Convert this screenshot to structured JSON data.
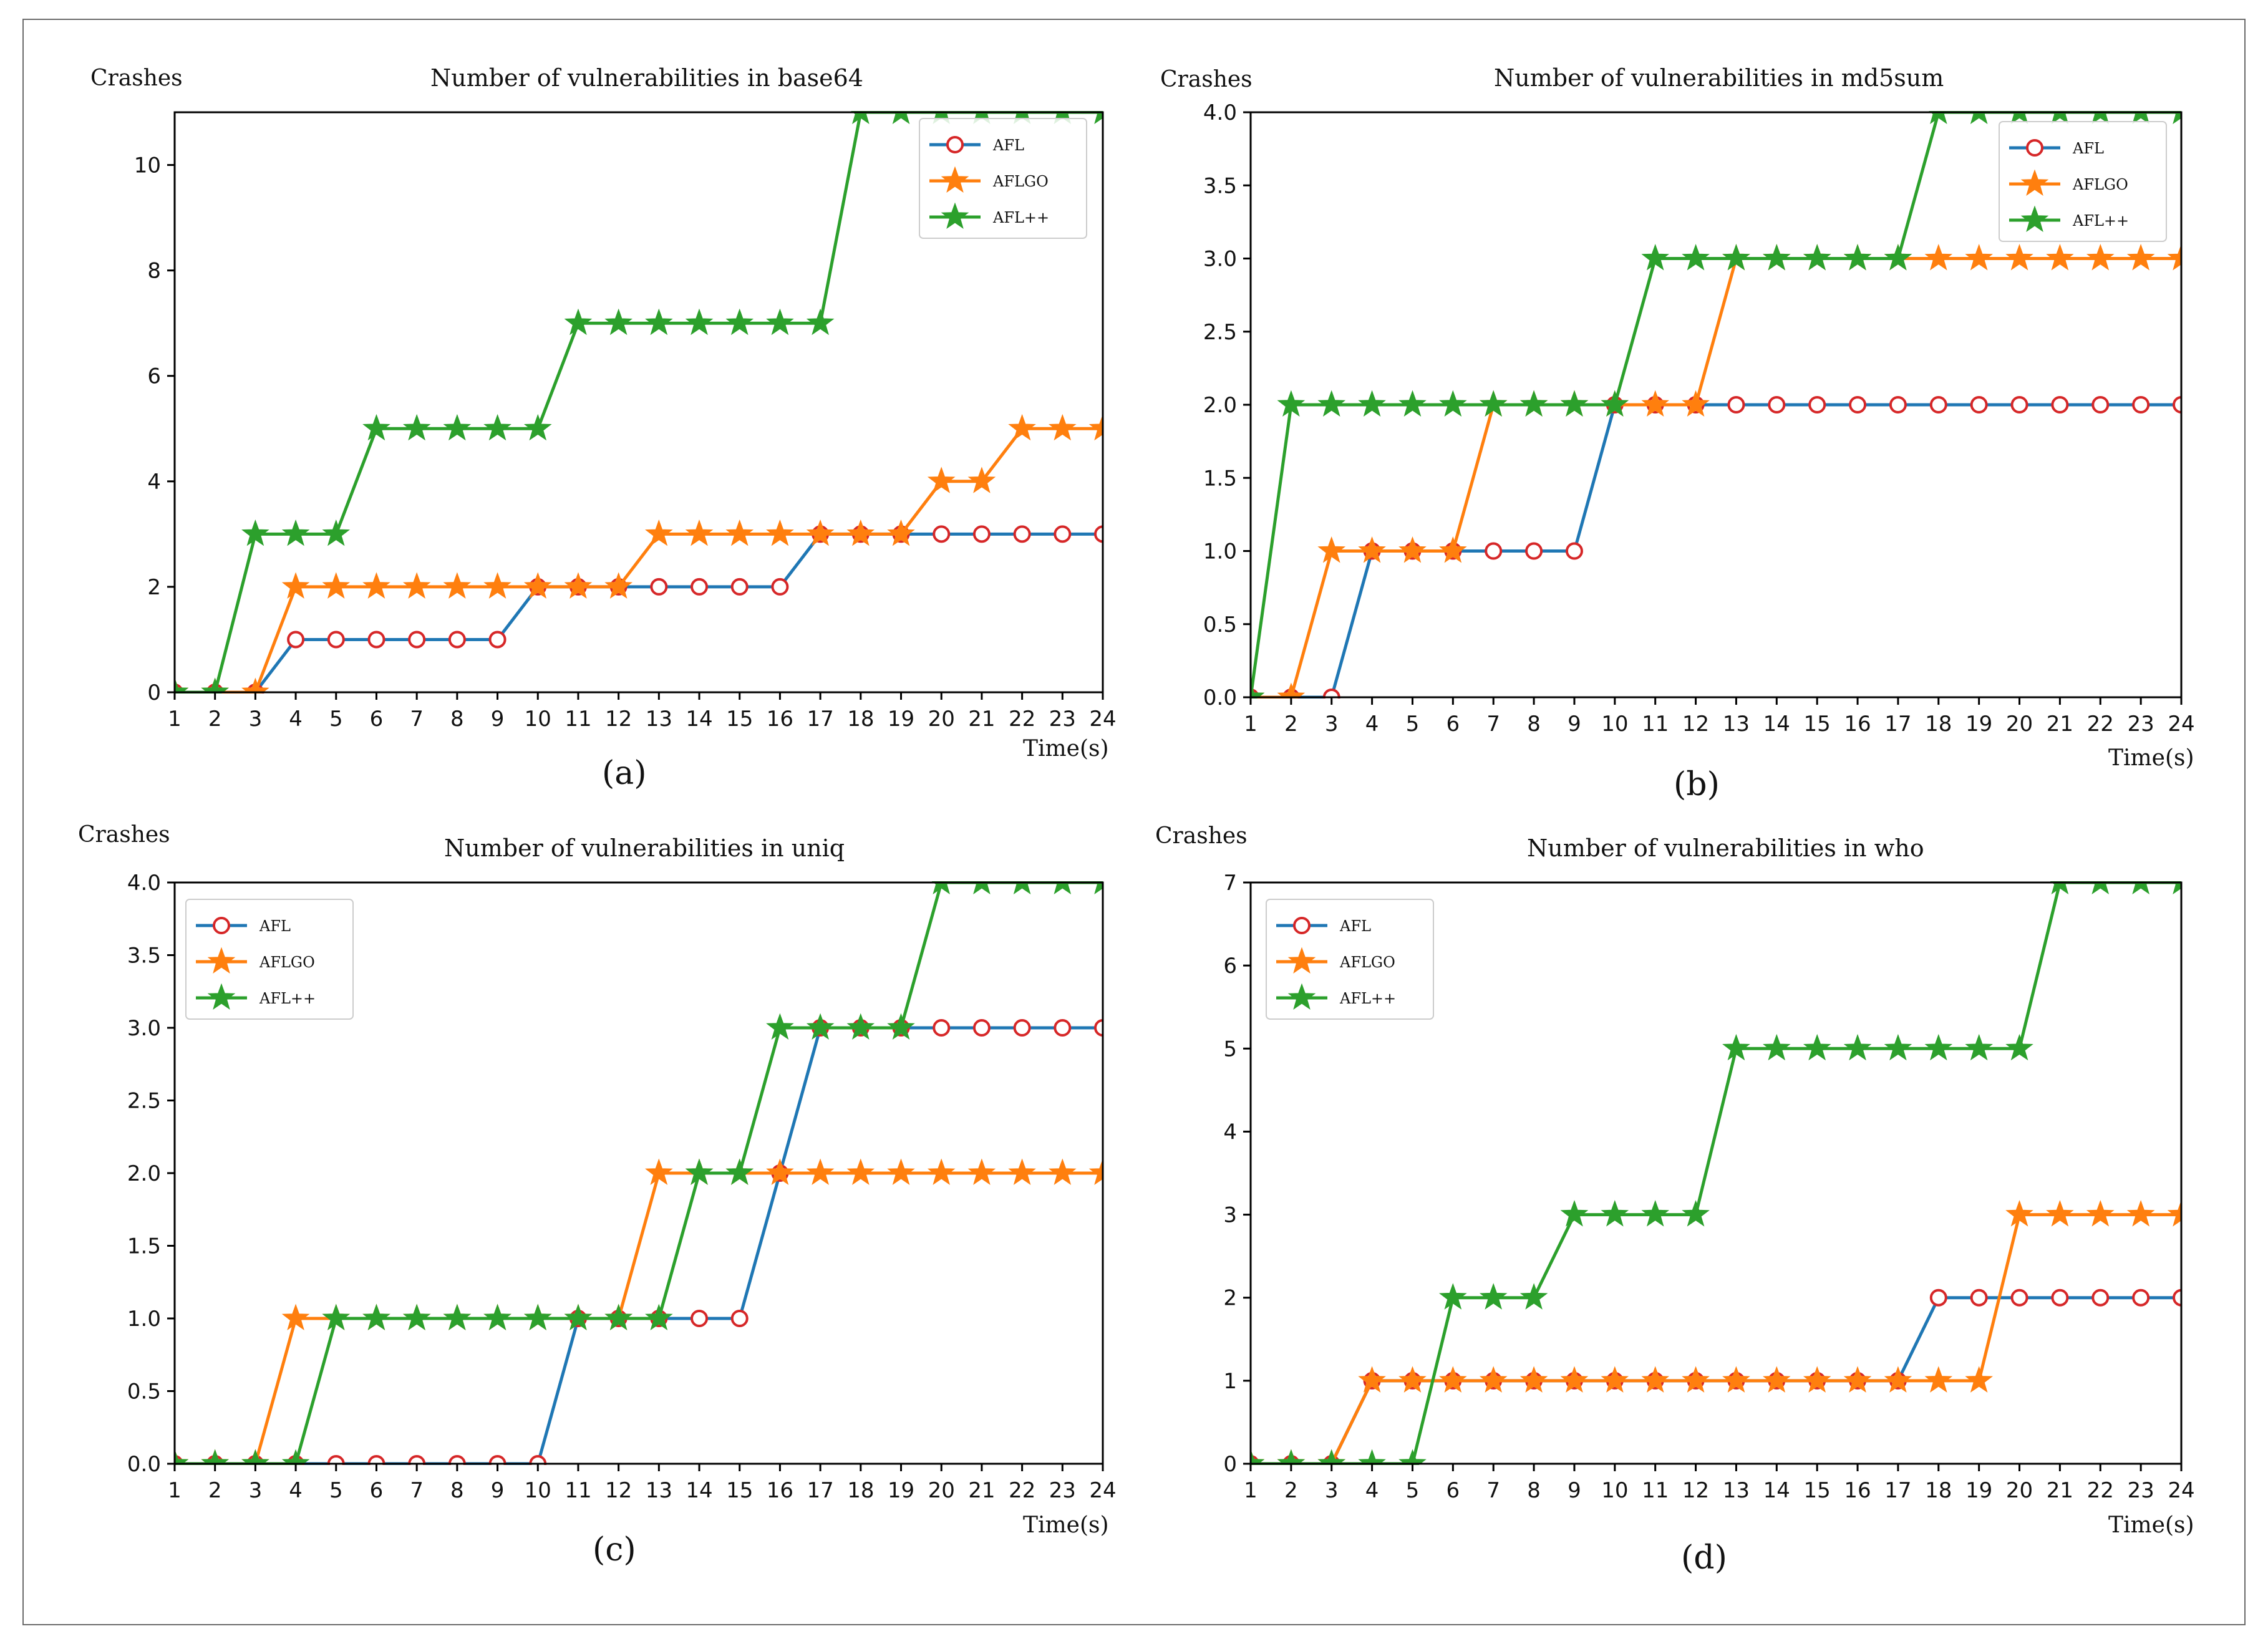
{
  "figure": {
    "colors": {
      "afl": "#1f77b4",
      "aflgo": "#ff7f0e",
      "aflpp": "#2ca02c",
      "marker_edge_afl": "#d62728",
      "axis": "#000000"
    }
  },
  "chart_data": [
    {
      "type": "line",
      "panel": "a",
      "caption": "(a)",
      "title": "Number of vulnerabilities in base64",
      "ylabel": "Crashes",
      "xlabel": "Time(s)",
      "x": [
        1,
        2,
        3,
        4,
        5,
        6,
        7,
        8,
        9,
        10,
        11,
        12,
        13,
        14,
        15,
        16,
        17,
        18,
        19,
        20,
        21,
        22,
        23,
        24
      ],
      "xlim": [
        1,
        24
      ],
      "ylim": [
        0,
        11
      ],
      "yticks": [
        0,
        2,
        4,
        6,
        8,
        10
      ],
      "ytick_labels": [
        "0",
        "2",
        "4",
        "6",
        "8",
        "10"
      ],
      "legend": {
        "position": "top-right",
        "entries": [
          "AFL",
          "AFLGO",
          "AFL++"
        ]
      },
      "series": [
        {
          "name": "AFL",
          "values": [
            0,
            0,
            0,
            1,
            1,
            1,
            1,
            1,
            1,
            2,
            2,
            2,
            2,
            2,
            2,
            2,
            3,
            3,
            3,
            3,
            3,
            3,
            3,
            3
          ]
        },
        {
          "name": "AFLGO",
          "values": [
            0,
            0,
            0,
            2,
            2,
            2,
            2,
            2,
            2,
            2,
            2,
            2,
            3,
            3,
            3,
            3,
            3,
            3,
            3,
            4,
            4,
            5,
            5,
            5
          ]
        },
        {
          "name": "AFL++",
          "values": [
            0,
            0,
            3,
            3,
            3,
            5,
            5,
            5,
            5,
            5,
            7,
            7,
            7,
            7,
            7,
            7,
            7,
            11,
            11,
            11,
            11,
            11,
            11,
            11
          ]
        }
      ]
    },
    {
      "type": "line",
      "panel": "b",
      "caption": "(b)",
      "title": "Number of vulnerabilities in md5sum",
      "ylabel": "Crashes",
      "xlabel": "Time(s)",
      "x": [
        1,
        2,
        3,
        4,
        5,
        6,
        7,
        8,
        9,
        10,
        11,
        12,
        13,
        14,
        15,
        16,
        17,
        18,
        19,
        20,
        21,
        22,
        23,
        24
      ],
      "xlim": [
        1,
        24
      ],
      "ylim": [
        0,
        4
      ],
      "yticks": [
        0,
        0.5,
        1,
        1.5,
        2,
        2.5,
        3,
        3.5,
        4
      ],
      "ytick_labels": [
        "0.0",
        "0.5",
        "1.0",
        "1.5",
        "2.0",
        "2.5",
        "3.0",
        "3.5",
        "4.0"
      ],
      "legend": {
        "position": "top-right",
        "entries": [
          "AFL",
          "AFLGO",
          "AFL++"
        ]
      },
      "series": [
        {
          "name": "AFL",
          "values": [
            0,
            0,
            0,
            1,
            1,
            1,
            1,
            1,
            1,
            2,
            2,
            2,
            2,
            2,
            2,
            2,
            2,
            2,
            2,
            2,
            2,
            2,
            2,
            2
          ]
        },
        {
          "name": "AFLGO",
          "values": [
            0,
            0,
            1,
            1,
            1,
            1,
            2,
            2,
            2,
            2,
            2,
            2,
            3,
            3,
            3,
            3,
            3,
            3,
            3,
            3,
            3,
            3,
            3,
            3
          ]
        },
        {
          "name": "AFL++",
          "values": [
            0,
            2,
            2,
            2,
            2,
            2,
            2,
            2,
            2,
            2,
            3,
            3,
            3,
            3,
            3,
            3,
            3,
            4,
            4,
            4,
            4,
            4,
            4,
            4
          ]
        }
      ]
    },
    {
      "type": "line",
      "panel": "c",
      "caption": "(c)",
      "title": "Number of vulnerabilities in uniq",
      "ylabel": "Crashes",
      "xlabel": "Time(s)",
      "x": [
        1,
        2,
        3,
        4,
        5,
        6,
        7,
        8,
        9,
        10,
        11,
        12,
        13,
        14,
        15,
        16,
        17,
        18,
        19,
        20,
        21,
        22,
        23,
        24
      ],
      "xlim": [
        1,
        24
      ],
      "ylim": [
        0,
        4
      ],
      "yticks": [
        0,
        0.5,
        1,
        1.5,
        2,
        2.5,
        3,
        3.5,
        4
      ],
      "ytick_labels": [
        "0.0",
        "0.5",
        "1.0",
        "1.5",
        "2.0",
        "2.5",
        "3.0",
        "3.5",
        "4.0"
      ],
      "legend": {
        "position": "top-left",
        "entries": [
          "AFL",
          "AFLGO",
          "AFL++"
        ]
      },
      "series": [
        {
          "name": "AFL",
          "values": [
            0,
            0,
            0,
            0,
            0,
            0,
            0,
            0,
            0,
            0,
            1,
            1,
            1,
            1,
            1,
            2,
            3,
            3,
            3,
            3,
            3,
            3,
            3,
            3
          ]
        },
        {
          "name": "AFLGO",
          "values": [
            0,
            0,
            0,
            1,
            1,
            1,
            1,
            1,
            1,
            1,
            1,
            1,
            2,
            2,
            2,
            2,
            2,
            2,
            2,
            2,
            2,
            2,
            2,
            2
          ]
        },
        {
          "name": "AFL++",
          "values": [
            0,
            0,
            0,
            0,
            1,
            1,
            1,
            1,
            1,
            1,
            1,
            1,
            1,
            2,
            2,
            3,
            3,
            3,
            3,
            4,
            4,
            4,
            4,
            4
          ]
        }
      ]
    },
    {
      "type": "line",
      "panel": "d",
      "caption": "(d)",
      "title": "Number of vulnerabilities in who",
      "ylabel": "Crashes",
      "xlabel": "Time(s)",
      "x": [
        1,
        2,
        3,
        4,
        5,
        6,
        7,
        8,
        9,
        10,
        11,
        12,
        13,
        14,
        15,
        16,
        17,
        18,
        19,
        20,
        21,
        22,
        23,
        24
      ],
      "xlim": [
        1,
        24
      ],
      "ylim": [
        0,
        7
      ],
      "yticks": [
        0,
        1,
        2,
        3,
        4,
        5,
        6,
        7
      ],
      "ytick_labels": [
        "0",
        "1",
        "2",
        "3",
        "4",
        "5",
        "6",
        "7"
      ],
      "legend": {
        "position": "top-left",
        "entries": [
          "AFL",
          "AFLGO",
          "AFL++"
        ]
      },
      "series": [
        {
          "name": "AFL",
          "values": [
            0,
            0,
            0,
            1,
            1,
            1,
            1,
            1,
            1,
            1,
            1,
            1,
            1,
            1,
            1,
            1,
            1,
            2,
            2,
            2,
            2,
            2,
            2,
            2
          ]
        },
        {
          "name": "AFLGO",
          "values": [
            0,
            0,
            0,
            1,
            1,
            1,
            1,
            1,
            1,
            1,
            1,
            1,
            1,
            1,
            1,
            1,
            1,
            1,
            1,
            3,
            3,
            3,
            3,
            3
          ]
        },
        {
          "name": "AFL++",
          "values": [
            0,
            0,
            0,
            0,
            0,
            2,
            2,
            2,
            3,
            3,
            3,
            3,
            5,
            5,
            5,
            5,
            5,
            5,
            5,
            5,
            7,
            7,
            7,
            7
          ]
        }
      ]
    }
  ]
}
